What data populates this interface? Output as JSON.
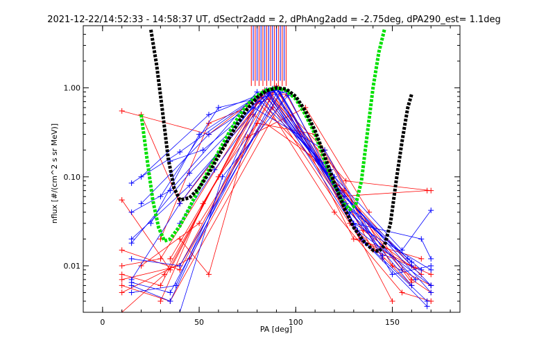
{
  "chart_data": {
    "type": "line",
    "title": "2021-12-22/14:52:33 - 14:58:37 UT, dSectr2add = 2, dPhAng2add = -2.75deg, dPA290_est=   1.1deg",
    "xlabel": "PA [deg]",
    "ylabel": "nflux [#/(cm^2 s sr MeV)]",
    "xlim": [
      -10,
      185
    ],
    "ylim": [
      0.003,
      5.0
    ],
    "yscale": "log",
    "x_ticks": [
      "0",
      "50",
      "100",
      "150"
    ],
    "x_tick_values": [
      0,
      50,
      100,
      150
    ],
    "y_ticks": [
      "0.01",
      "0.10",
      "1.00"
    ],
    "y_tick_values": [
      0.01,
      0.1,
      1.0
    ],
    "grid": false,
    "colors": {
      "red_series": "#ff0000",
      "blue_series": "#0000ff",
      "black_fit": "#000000",
      "green_fit": "#00e000"
    },
    "fit_black": {
      "x": [
        25,
        28,
        31,
        34,
        37,
        40,
        45,
        50,
        55,
        60,
        65,
        70,
        75,
        80,
        85,
        90,
        95,
        100,
        105,
        110,
        115,
        120,
        125,
        130,
        135,
        140,
        143,
        146,
        149,
        152,
        155,
        158,
        160
      ],
      "y": [
        4.5,
        1.8,
        0.55,
        0.16,
        0.075,
        0.055,
        0.058,
        0.075,
        0.11,
        0.17,
        0.26,
        0.4,
        0.58,
        0.78,
        0.93,
        1.0,
        0.97,
        0.8,
        0.55,
        0.33,
        0.17,
        0.085,
        0.045,
        0.027,
        0.019,
        0.015,
        0.0145,
        0.017,
        0.03,
        0.09,
        0.25,
        0.6,
        0.85
      ]
    },
    "fit_green": {
      "x": [
        20,
        23,
        26,
        29,
        32,
        35,
        40,
        45,
        50,
        55,
        60,
        65,
        70,
        75,
        80,
        85,
        90,
        95,
        100,
        105,
        110,
        115,
        120,
        125,
        128,
        131,
        134,
        137,
        140,
        143,
        146
      ],
      "y": [
        0.5,
        0.16,
        0.055,
        0.027,
        0.019,
        0.02,
        0.028,
        0.045,
        0.075,
        0.12,
        0.19,
        0.3,
        0.46,
        0.65,
        0.82,
        0.95,
        1.0,
        0.93,
        0.75,
        0.5,
        0.3,
        0.15,
        0.08,
        0.05,
        0.043,
        0.048,
        0.09,
        0.3,
        1.0,
        2.5,
        4.6
      ]
    },
    "series_red": [
      {
        "x": [
          10,
          55,
          85,
          115,
          150,
          170
        ],
        "y": [
          0.55,
          0.3,
          0.95,
          0.2,
          0.01,
          0.006
        ]
      },
      {
        "x": [
          10,
          35,
          80,
          125,
          160,
          170
        ],
        "y": [
          0.055,
          0.009,
          0.7,
          0.07,
          0.007,
          0.005
        ]
      },
      {
        "x": [
          10,
          40,
          90,
          130,
          165
        ],
        "y": [
          0.015,
          0.009,
          1.0,
          0.02,
          0.012
        ]
      },
      {
        "x": [
          10,
          30,
          82,
          120,
          155,
          170
        ],
        "y": [
          0.008,
          0.006,
          0.8,
          0.04,
          0.005,
          0.004
        ]
      },
      {
        "x": [
          10,
          35,
          95,
          140,
          170
        ],
        "y": [
          0.006,
          0.004,
          0.85,
          0.015,
          0.008
        ]
      },
      {
        "x": [
          10,
          45,
          88,
          128,
          160
        ],
        "y": [
          0.005,
          0.012,
          0.6,
          0.03,
          0.006
        ]
      },
      {
        "x": [
          10,
          32,
          78,
          112,
          150
        ],
        "y": [
          0.003,
          0.008,
          0.5,
          0.15,
          0.004
        ]
      },
      {
        "x": [
          20,
          40,
          85,
          118,
          160
        ],
        "y": [
          0.5,
          0.05,
          0.9,
          0.1,
          0.01
        ]
      },
      {
        "x": [
          20,
          50,
          92,
          135,
          165
        ],
        "y": [
          0.01,
          0.03,
          0.85,
          0.025,
          0.008
        ]
      },
      {
        "x": [
          30,
          55,
          86,
          122,
          168
        ],
        "y": [
          0.02,
          0.4,
          0.75,
          0.06,
          0.07
        ]
      },
      {
        "x": [
          35,
          60,
          80,
          110,
          145
        ],
        "y": [
          0.012,
          0.1,
          0.4,
          0.3,
          0.012
        ]
      },
      {
        "x": [
          40,
          55,
          75,
          105,
          138
        ],
        "y": [
          0.02,
          0.008,
          0.28,
          0.6,
          0.04
        ]
      },
      {
        "x": [
          10,
          30,
          84,
          126,
          170
        ],
        "y": [
          0.01,
          0.012,
          0.95,
          0.09,
          0.07
        ]
      },
      {
        "x": [
          10,
          40,
          90,
          133,
          162
        ],
        "y": [
          0.007,
          0.01,
          1.05,
          0.02,
          0.0095
        ]
      },
      {
        "x": [
          30,
          52,
          87,
          124,
          160
        ],
        "y": [
          0.004,
          0.05,
          0.88,
          0.07,
          0.0065
        ]
      }
    ],
    "series_blue": [
      {
        "x": [
          15,
          40,
          85,
          125,
          160,
          170
        ],
        "y": [
          0.085,
          0.19,
          0.95,
          0.06,
          0.01,
          0.006
        ]
      },
      {
        "x": [
          15,
          35,
          80,
          120,
          155,
          170
        ],
        "y": [
          0.04,
          0.07,
          0.9,
          0.1,
          0.015,
          0.042
        ]
      },
      {
        "x": [
          15,
          45,
          88,
          130,
          165,
          170
        ],
        "y": [
          0.02,
          0.08,
          0.95,
          0.03,
          0.02,
          0.012
        ]
      },
      {
        "x": [
          15,
          40,
          92,
          128,
          160
        ],
        "y": [
          0.012,
          0.01,
          0.9,
          0.04,
          0.006
        ]
      },
      {
        "x": [
          15,
          35,
          86,
          134,
          168
        ],
        "y": [
          0.006,
          0.004,
          0.85,
          0.02,
          0.004
        ]
      },
      {
        "x": [
          15,
          38,
          82,
          118,
          150,
          170
        ],
        "y": [
          0.005,
          0.006,
          0.7,
          0.12,
          0.008,
          0.01
        ]
      },
      {
        "x": [
          20,
          55,
          90,
          125,
          165
        ],
        "y": [
          0.1,
          0.5,
          1.0,
          0.05,
          0.009
        ]
      },
      {
        "x": [
          25,
          50,
          84,
          122,
          158
        ],
        "y": [
          0.03,
          0.3,
          0.92,
          0.07,
          0.012
        ]
      },
      {
        "x": [
          30,
          60,
          95,
          132,
          170
        ],
        "y": [
          0.06,
          0.6,
          0.9,
          0.025,
          0.006
        ]
      },
      {
        "x": [
          35,
          52,
          78,
          115,
          145
        ],
        "y": [
          0.15,
          0.2,
          0.6,
          0.2,
          0.013
        ]
      },
      {
        "x": [
          40,
          58,
          88,
          128,
          162
        ],
        "y": [
          0.03,
          0.12,
          0.98,
          0.04,
          0.007
        ]
      },
      {
        "x": [
          15,
          40,
          83,
          121,
          170
        ],
        "y": [
          0.007,
          0.05,
          0.88,
          0.08,
          0.005
        ]
      },
      {
        "x": [
          15,
          35,
          91,
          136,
          168
        ],
        "y": [
          0.0065,
          0.005,
          0.95,
          0.018,
          0.0035
        ]
      },
      {
        "x": [
          15,
          45,
          86,
          126,
          160
        ],
        "y": [
          0.018,
          0.11,
          0.9,
          0.05,
          0.011
        ]
      },
      {
        "x": [
          20,
          55,
          89,
          123,
          155
        ],
        "y": [
          0.05,
          0.3,
          0.93,
          0.06,
          0.009
        ]
      },
      {
        "x": [
          40,
          62,
          96,
          130,
          170
        ],
        "y": [
          0.003,
          0.1,
          0.82,
          0.03,
          0.009
        ]
      }
    ],
    "bars_red_x": [
      77,
      79,
      81,
      83,
      85,
      87,
      89,
      91,
      93,
      95
    ],
    "bars_blue_x": [
      78,
      80,
      82,
      84,
      86,
      88,
      90,
      92,
      94
    ]
  }
}
